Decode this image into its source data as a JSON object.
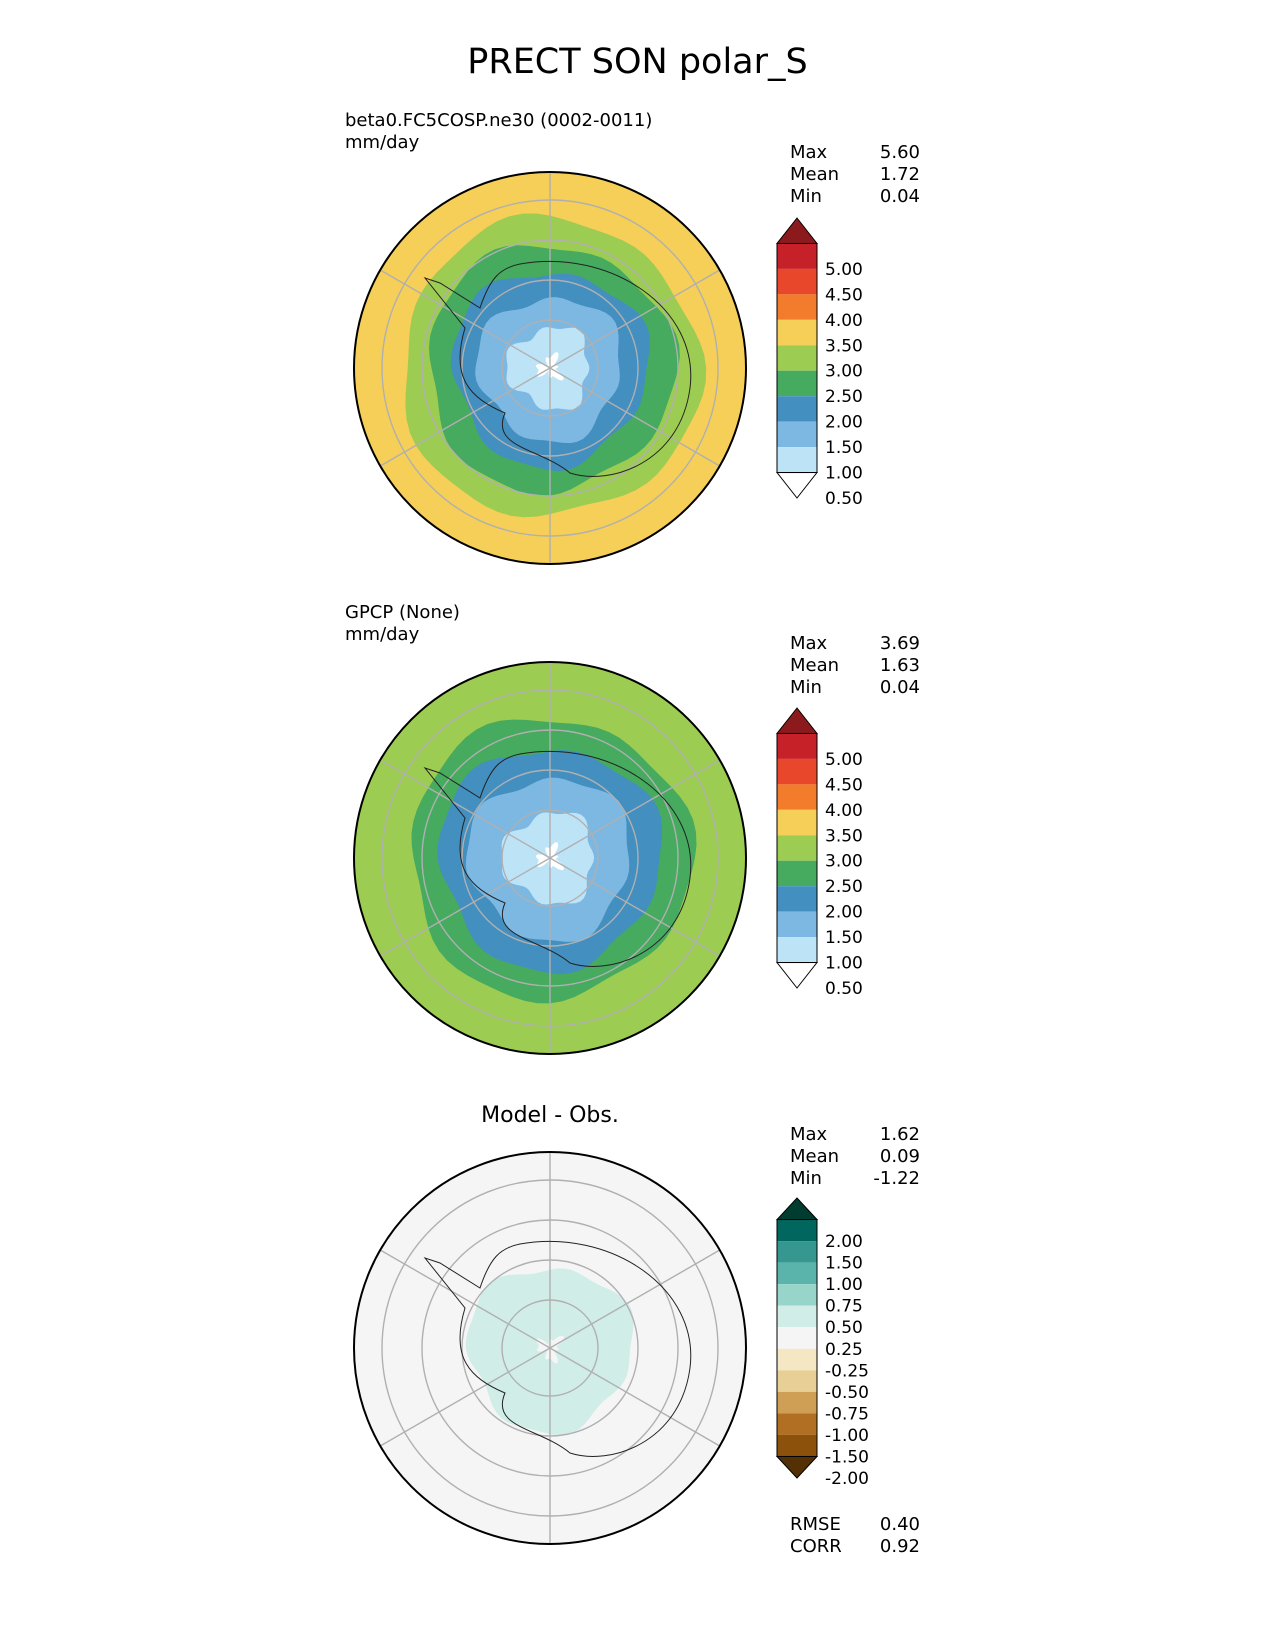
{
  "figure": {
    "title": "PRECT SON polar_S"
  },
  "panels": [
    {
      "label": "beta0.FC5COSP.ne30 (0002-0011)",
      "units": "mm/day",
      "stats": [
        {
          "name": "Max",
          "value": "5.60"
        },
        {
          "name": "Mean",
          "value": "1.72"
        },
        {
          "name": "Min",
          "value": "0.04"
        }
      ]
    },
    {
      "label": "GPCP (None)",
      "units": "mm/day",
      "stats": [
        {
          "name": "Max",
          "value": "3.69"
        },
        {
          "name": "Mean",
          "value": "1.63"
        },
        {
          "name": "Min",
          "value": "0.04"
        }
      ]
    },
    {
      "title": "Model - Obs.",
      "stats": [
        {
          "name": "Max",
          "value": "1.62"
        },
        {
          "name": "Mean",
          "value": "0.09"
        },
        {
          "name": "Min",
          "value": "-1.22"
        }
      ],
      "metrics": [
        {
          "name": "RMSE",
          "value": "0.40"
        },
        {
          "name": "CORR",
          "value": "0.92"
        }
      ]
    }
  ],
  "chart_data": [
    {
      "type": "heatmap",
      "projection": "south polar stereographic",
      "title": "beta0.FC5COSP.ne30 (0002-0011)",
      "units": "mm/day",
      "colorbar": {
        "ticks": [
          "5.00",
          "4.50",
          "4.00",
          "3.50",
          "3.00",
          "2.50",
          "2.00",
          "1.50",
          "1.00",
          "0.50"
        ],
        "colors": [
          "#8c1a1d",
          "#c62128",
          "#e8472b",
          "#f37b2c",
          "#f5cf57",
          "#9dcc52",
          "#46aa5f",
          "#438fc0",
          "#7db8e2",
          "#bde3f7",
          "#ffffff"
        ],
        "extend": "both"
      },
      "rings": [
        {
          "level": 0.0,
          "color": "#ffffff"
        },
        {
          "level": 0.6,
          "color": "#bde3f7"
        },
        {
          "level": 1.2,
          "color": "#7db8e2"
        },
        {
          "level": 1.7,
          "color": "#438fc0"
        },
        {
          "level": 2.2,
          "color": "#46aa5f"
        },
        {
          "level": 2.7,
          "color": "#9dcc52"
        },
        {
          "level": 3.2,
          "color": "#f5cf57"
        }
      ]
    },
    {
      "type": "heatmap",
      "projection": "south polar stereographic",
      "title": "GPCP (None)",
      "units": "mm/day",
      "colorbar": {
        "ticks": [
          "5.00",
          "4.50",
          "4.00",
          "3.50",
          "3.00",
          "2.50",
          "2.00",
          "1.50",
          "1.00",
          "0.50"
        ],
        "colors": [
          "#8c1a1d",
          "#c62128",
          "#e8472b",
          "#f37b2c",
          "#f5cf57",
          "#9dcc52",
          "#46aa5f",
          "#438fc0",
          "#7db8e2",
          "#bde3f7",
          "#ffffff"
        ],
        "extend": "both"
      },
      "rings": [
        {
          "level": 0.0,
          "color": "#ffffff"
        },
        {
          "level": 0.6,
          "color": "#bde3f7"
        },
        {
          "level": 1.2,
          "color": "#7db8e2"
        },
        {
          "level": 1.7,
          "color": "#438fc0"
        },
        {
          "level": 2.2,
          "color": "#46aa5f"
        },
        {
          "level": 2.7,
          "color": "#9dcc52"
        }
      ]
    },
    {
      "type": "heatmap",
      "projection": "south polar stereographic",
      "title": "Model - Obs.",
      "colorbar": {
        "ticks": [
          "2.00",
          "1.50",
          "1.00",
          "0.75",
          "0.50",
          "0.25",
          "-0.25",
          "-0.50",
          "-0.75",
          "-1.00",
          "-1.50",
          "-2.00"
        ],
        "colors": [
          "#003c30",
          "#01665e",
          "#35978f",
          "#5ab4ac",
          "#97d4c9",
          "#d0ede8",
          "#f5f5f5",
          "#f5e7c3",
          "#e7cf96",
          "#cf9f55",
          "#b06f22",
          "#8c510a",
          "#543005"
        ],
        "extend": "both"
      },
      "rings": [
        {
          "level": 0.0,
          "color": "#f5f5f5"
        },
        {
          "level": 0.7,
          "color": "#d0ede8"
        },
        {
          "level": 1.3,
          "color": "#f5f5f5"
        }
      ]
    }
  ]
}
